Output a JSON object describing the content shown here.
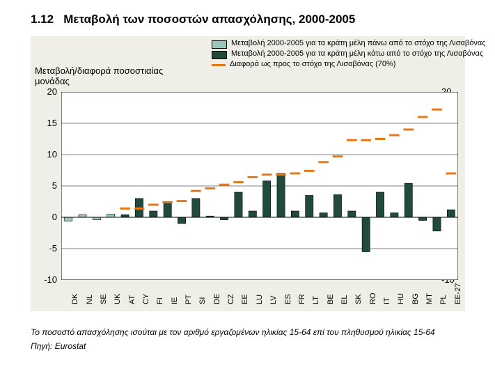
{
  "title_number": "1.12",
  "title_text": "Μεταβολή των ποσοστών απασχόλησης, 2000-2005",
  "axis_title_line1": "Μεταβολή/διαφορά ποσοστιαίας",
  "axis_title_line2": "μονάδας",
  "legend": {
    "series_above": "Μεταβολή 2000-2005 για τα κράτη μέλη πάνω από το στόχο της Λισαβόνας",
    "series_below": "Μεταβολή 2000-2005 για τα κράτη μέλη κάτω από το στόχο της Λισαβόνας",
    "series_gap": "Διαφορά ως προς το στόχο της Λισαβόνας (70%)"
  },
  "footnote1": "Το ποσοστό απασχόλησης ισούται με τον αριθμό εργαζομένων ηλικίας 15-64 επί του πληθυσμού ηλικίας 15-64",
  "footnote2": "Πηγή: Eurostat",
  "chart": {
    "type": "bar-with-step-line",
    "ylim": [
      -10,
      20
    ],
    "ytick_step": 5,
    "yticks": [
      -10,
      -5,
      0,
      5,
      10,
      15,
      20
    ],
    "plot_bg": "#ffffff",
    "panel_bg": "#efefe7",
    "grid_color": "#000000",
    "grid_width": 0.5,
    "bar_color_above": "#9dc3bd",
    "bar_color_below": "#204b3c",
    "bar_outline": "#000000",
    "gap_color": "#e67817",
    "gap_dash_width": 3,
    "axis_font_size": 13,
    "xlabel_font_size": 11,
    "legend_font_size": 11,
    "title_font_size": 17,
    "bar_width_ratio": 0.55,
    "categories": [
      "DK",
      "NL",
      "SE",
      "UK",
      "AT",
      "CY",
      "FI",
      "IE",
      "PT",
      "SI",
      "DE",
      "CZ",
      "EE",
      "LU",
      "LV",
      "ES",
      "FR",
      "LT",
      "BE",
      "EL",
      "SK",
      "RO",
      "IT",
      "HU",
      "BG",
      "MT",
      "PL",
      "EE-27"
    ],
    "series_above_or_below": [
      "above",
      "above",
      "above",
      "above",
      "below",
      "below",
      "below",
      "below",
      "below",
      "below",
      "below",
      "below",
      "below",
      "below",
      "below",
      "below",
      "below",
      "below",
      "below",
      "below",
      "below",
      "below",
      "below",
      "below",
      "below",
      "below",
      "below",
      "below"
    ],
    "bar_values": [
      -0.6,
      0.4,
      -0.4,
      0.5,
      0.4,
      3.0,
      1.0,
      2.4,
      -1.0,
      3.0,
      0.2,
      -0.4,
      4.0,
      1.0,
      5.8,
      7.0,
      1.0,
      3.5,
      0.7,
      3.6,
      1.0,
      -5.5,
      4.0,
      0.7,
      5.4,
      -0.5,
      -2.2,
      1.2
    ],
    "gap_values": [
      null,
      null,
      null,
      null,
      1.4,
      1.4,
      2.0,
      2.4,
      2.6,
      4.2,
      4.6,
      5.2,
      5.6,
      6.4,
      6.8,
      6.8,
      7.0,
      7.4,
      8.8,
      9.7,
      12.3,
      12.3,
      12.5,
      13.1,
      14.0,
      16.0,
      17.2,
      7.0
    ]
  }
}
